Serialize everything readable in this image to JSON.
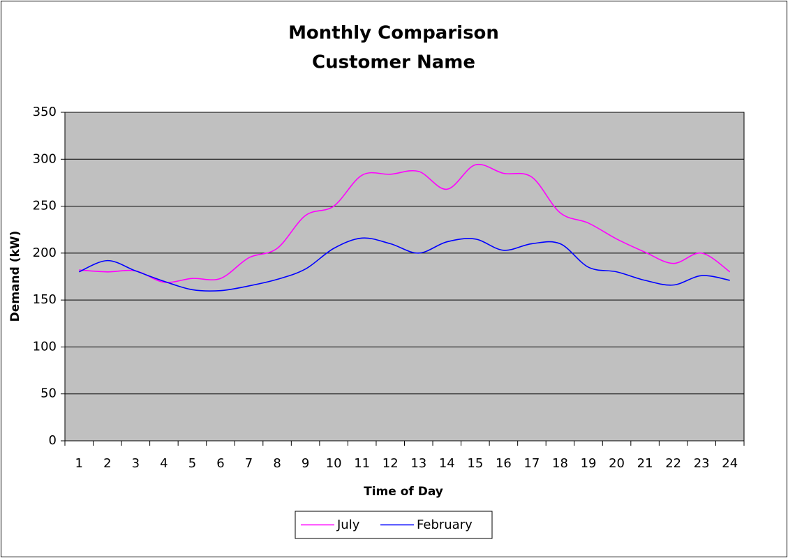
{
  "chart_data": {
    "type": "line",
    "title": [
      "Monthly Comparison",
      "Customer Name"
    ],
    "x_label": "Time of Day",
    "y_label": "Demand (kW)",
    "categories": [
      "1",
      "2",
      "3",
      "4",
      "5",
      "6",
      "7",
      "8",
      "9",
      "10",
      "11",
      "12",
      "13",
      "14",
      "15",
      "16",
      "17",
      "18",
      "19",
      "20",
      "21",
      "22",
      "23",
      "24"
    ],
    "series": [
      {
        "name": "July",
        "color": "#ff00ff",
        "values": [
          182,
          180,
          181,
          169,
          173,
          173,
          195,
          205,
          240,
          250,
          283,
          284,
          287,
          268,
          294,
          285,
          281,
          243,
          232,
          215,
          201,
          189,
          200,
          180
        ]
      },
      {
        "name": "February",
        "color": "#0000ff",
        "values": [
          180,
          192,
          181,
          170,
          161,
          160,
          165,
          172,
          183,
          205,
          216,
          210,
          200,
          212,
          215,
          203,
          210,
          210,
          185,
          180,
          171,
          166,
          176,
          171
        ]
      }
    ],
    "ylim": [
      0,
      350
    ],
    "yticks": [
      0,
      50,
      100,
      150,
      200,
      250,
      300,
      350
    ],
    "grid": true,
    "smooth": true,
    "legend": "bottom",
    "plot_background": "#c0c0c0"
  }
}
